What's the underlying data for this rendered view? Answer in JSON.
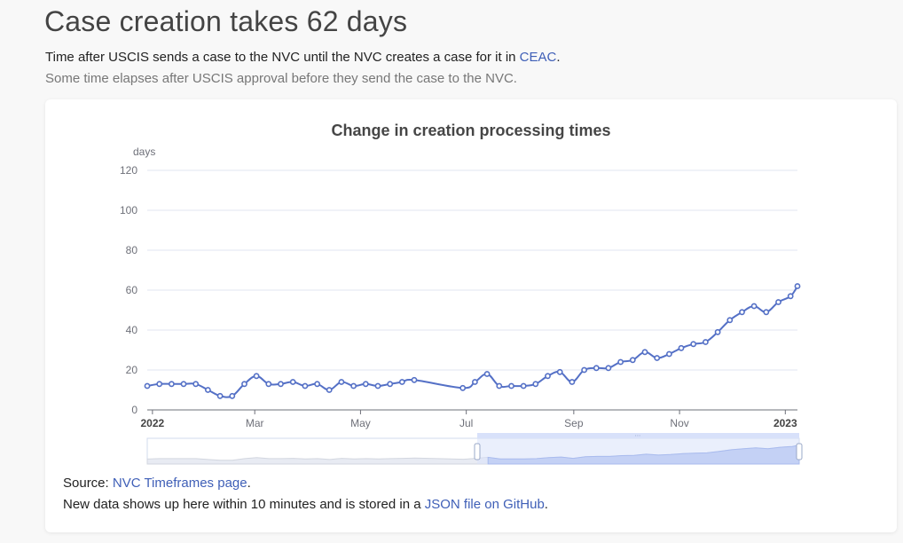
{
  "page": {
    "title": "Case creation takes 62 days",
    "lead_text": "Time after USCIS sends a case to the NVC until the NVC creates a case for it in ",
    "lead_link": "CEAC",
    "lead_end": ".",
    "sublead": "Some time elapses after USCIS approval before they send the case to the NVC."
  },
  "footer": {
    "source_label": "Source: ",
    "source_link": "NVC Timeframes page",
    "source_end": ".",
    "note_text": "New data shows up here within 10 minutes and is stored in a ",
    "note_link": "JSON file on GitHub",
    "note_end": "."
  },
  "colors": {
    "line": "#5470c6",
    "grid": "#e0e6f1",
    "axis": "#6e7079",
    "zoom_fill": "#d8e1fa"
  },
  "chart_data": {
    "type": "line",
    "title": "Change in creation processing times",
    "ylabel": "days",
    "ylim": [
      0,
      120
    ],
    "yticks": [
      0,
      20,
      40,
      60,
      80,
      100,
      120
    ],
    "xlim": [
      "2021-12-29",
      "2023-01-08"
    ],
    "xtick_labels": [
      {
        "label": "2022",
        "date": "2022-01-01",
        "bold": true
      },
      {
        "label": "Mar",
        "date": "2022-03-01",
        "bold": false
      },
      {
        "label": "May",
        "date": "2022-05-01",
        "bold": false
      },
      {
        "label": "Jul",
        "date": "2022-07-01",
        "bold": false
      },
      {
        "label": "Sep",
        "date": "2022-09-01",
        "bold": false
      },
      {
        "label": "Nov",
        "date": "2022-11-01",
        "bold": false
      },
      {
        "label": "2023",
        "date": "2023-01-01",
        "bold": true
      }
    ],
    "grid": true,
    "legend": "none",
    "dataZoom": true,
    "series": [
      {
        "x": [
          "2021-12-29",
          "2022-01-05",
          "2022-01-12",
          "2022-01-19",
          "2022-01-26",
          "2022-02-02",
          "2022-02-09",
          "2022-02-16",
          "2022-02-23",
          "2022-03-02",
          "2022-03-09",
          "2022-03-16",
          "2022-03-23",
          "2022-03-30",
          "2022-04-06",
          "2022-04-13",
          "2022-04-20",
          "2022-04-27",
          "2022-05-04",
          "2022-05-11",
          "2022-05-18",
          "2022-05-25",
          "2022-06-01",
          "2022-06-29",
          "2022-07-06",
          "2022-07-13",
          "2022-07-20",
          "2022-07-27",
          "2022-08-03",
          "2022-08-10",
          "2022-08-17",
          "2022-08-24",
          "2022-08-31",
          "2022-09-07",
          "2022-09-14",
          "2022-09-21",
          "2022-09-28",
          "2022-10-05",
          "2022-10-12",
          "2022-10-19",
          "2022-10-26",
          "2022-11-02",
          "2022-11-09",
          "2022-11-16",
          "2022-11-23",
          "2022-11-30",
          "2022-12-07",
          "2022-12-14",
          "2022-12-21",
          "2022-12-28",
          "2023-01-04",
          "2023-01-08"
        ],
        "values": [
          12,
          13,
          13,
          13,
          13,
          10,
          7,
          7,
          13,
          17,
          13,
          13,
          14,
          12,
          13,
          10,
          14,
          12,
          13,
          12,
          13,
          14,
          15,
          11,
          14,
          18,
          12,
          12,
          12,
          13,
          17,
          19,
          14,
          20,
          21,
          21,
          24,
          25,
          29,
          26,
          28,
          31,
          33,
          34,
          39,
          45,
          49,
          52,
          49,
          54,
          57,
          62
        ]
      }
    ]
  }
}
